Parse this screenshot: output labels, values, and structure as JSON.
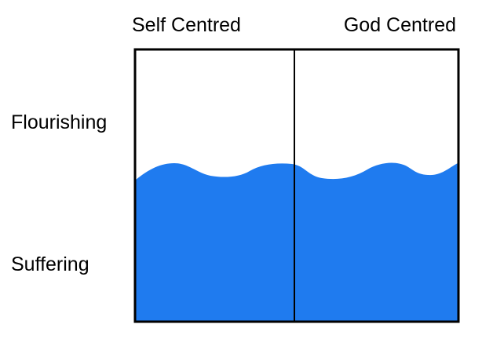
{
  "columns": [
    "Self Centred",
    "God Centred"
  ],
  "rows": [
    "Flourishing",
    "Suffering"
  ]
}
